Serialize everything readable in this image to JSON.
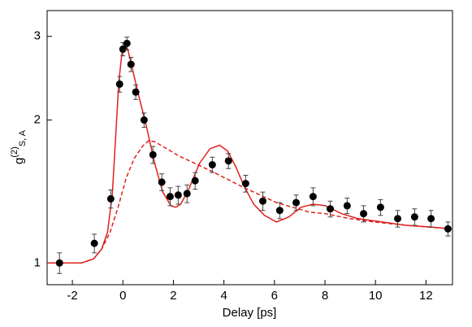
{
  "chart_data": {
    "type": "scatter",
    "x_label": "Delay [ps]",
    "y_label": {
      "base": "g",
      "sup": "(2)",
      "sub": "S, A"
    },
    "xlim": [
      -3,
      13.05
    ],
    "ylim": [
      0.9,
      3.4
    ],
    "y_scale": "log",
    "xticks": [
      -2,
      0,
      2,
      4,
      6,
      8,
      10,
      12
    ],
    "yticks": [
      1,
      2,
      3
    ],
    "series": [
      {
        "style": "points",
        "color": "#000000",
        "x": [
          -2.51,
          -1.13,
          -0.48,
          -0.13,
          0,
          0.16,
          0.32,
          0.51,
          0.84,
          1.19,
          1.54,
          1.87,
          2.19,
          2.54,
          2.86,
          3.54,
          4.18,
          4.86,
          5.54,
          6.21,
          6.86,
          7.53,
          8.21,
          8.88,
          9.53,
          10.2,
          10.88,
          11.55,
          12.2,
          12.87
        ],
        "values": [
          1.0,
          1.1,
          1.365,
          2.38,
          2.82,
          2.9,
          2.62,
          2.29,
          2.0,
          1.69,
          1.48,
          1.38,
          1.39,
          1.4,
          1.49,
          1.61,
          1.64,
          1.47,
          1.35,
          1.29,
          1.34,
          1.38,
          1.3,
          1.32,
          1.27,
          1.31,
          1.24,
          1.25,
          1.24,
          1.18
        ],
        "errors": [
          0.05,
          0.05,
          0.06,
          0.09,
          0.09,
          0.09,
          0.09,
          0.08,
          0.07,
          0.07,
          0.06,
          0.06,
          0.06,
          0.06,
          0.06,
          0.06,
          0.06,
          0.06,
          0.06,
          0.05,
          0.05,
          0.06,
          0.05,
          0.05,
          0.05,
          0.05,
          0.05,
          0.05,
          0.05,
          0.04
        ]
      },
      {
        "style": "solid",
        "color": "#e0201c",
        "x": [
          -2.99,
          -1.64,
          -1.16,
          -0.84,
          -0.61,
          -0.42,
          -0.29,
          -0.16,
          -0.03,
          0.1,
          0.19,
          0.35,
          0.61,
          0.93,
          1.26,
          1.58,
          1.9,
          2.09,
          2.29,
          2.61,
          3.03,
          3.45,
          3.83,
          4.15,
          4.48,
          4.8,
          5.18,
          5.6,
          6.08,
          6.57,
          7.05,
          7.53,
          8.01,
          8.66,
          9.3,
          10.27,
          11.23,
          12.2,
          13.0
        ],
        "values": [
          1.0,
          1.0,
          1.02,
          1.07,
          1.16,
          1.39,
          1.83,
          2.41,
          2.79,
          2.87,
          2.82,
          2.6,
          2.27,
          1.94,
          1.62,
          1.41,
          1.32,
          1.31,
          1.33,
          1.43,
          1.62,
          1.74,
          1.77,
          1.72,
          1.59,
          1.45,
          1.33,
          1.26,
          1.22,
          1.25,
          1.31,
          1.33,
          1.32,
          1.27,
          1.24,
          1.22,
          1.2,
          1.19,
          1.18
        ]
      },
      {
        "style": "dashed",
        "color": "#e0201c",
        "x": [
          -2.99,
          -1.64,
          -1.16,
          -0.84,
          -0.51,
          -0.19,
          0.13,
          0.45,
          0.77,
          1.03,
          1.26,
          1.58,
          2.22,
          2.86,
          3.51,
          4.15,
          4.8,
          5.44,
          6.08,
          6.73,
          7.37,
          8.01,
          8.98,
          9.95,
          11.23,
          13.0
        ],
        "values": [
          1.0,
          1.0,
          1.02,
          1.07,
          1.16,
          1.31,
          1.51,
          1.66,
          1.76,
          1.81,
          1.8,
          1.76,
          1.68,
          1.62,
          1.56,
          1.5,
          1.44,
          1.39,
          1.34,
          1.31,
          1.28,
          1.27,
          1.24,
          1.22,
          1.2,
          1.18
        ]
      }
    ]
  }
}
